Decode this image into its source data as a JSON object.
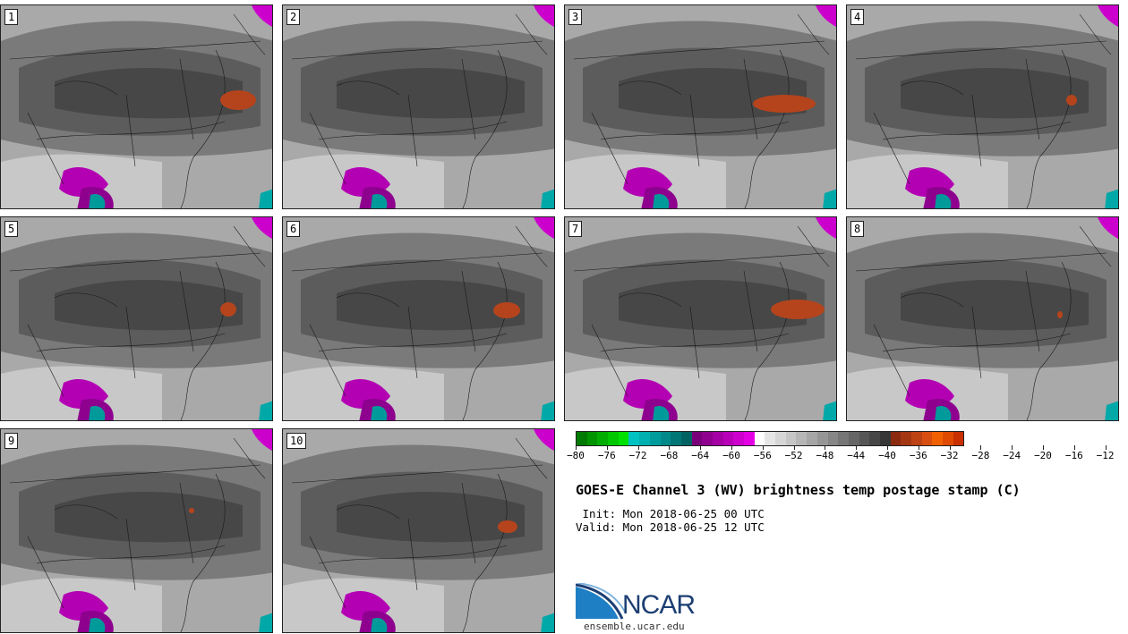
{
  "panels": [
    {
      "label": "1",
      "hot": [
        [
          245,
          95,
          40,
          22
        ]
      ]
    },
    {
      "label": "2",
      "hot": []
    },
    {
      "label": "3",
      "hot": [
        [
          210,
          100,
          70,
          20
        ]
      ]
    },
    {
      "label": "4",
      "hot": [
        [
          245,
          100,
          12,
          12
        ]
      ]
    },
    {
      "label": "5",
      "hot": [
        [
          245,
          95,
          18,
          16
        ]
      ]
    },
    {
      "label": "6",
      "hot": [
        [
          235,
          95,
          30,
          18
        ]
      ]
    },
    {
      "label": "7",
      "hot": [
        [
          230,
          92,
          60,
          22
        ]
      ]
    },
    {
      "label": "8",
      "hot": [
        [
          235,
          105,
          6,
          8
        ]
      ]
    },
    {
      "label": "9",
      "hot": [
        [
          210,
          88,
          6,
          6
        ]
      ]
    },
    {
      "label": "10",
      "hot": [
        [
          240,
          102,
          22,
          14
        ]
      ]
    }
  ],
  "colorbar": {
    "colors": [
      "#007a00",
      "#009400",
      "#00ad00",
      "#00c700",
      "#00e000",
      "#00c2c2",
      "#00afaf",
      "#009c9c",
      "#008989",
      "#007676",
      "#006363",
      "#7a007a",
      "#8f008f",
      "#a400a4",
      "#b900b9",
      "#ce00ce",
      "#e300e3",
      "#ffffff",
      "#e6e6e6",
      "#d6d6d6",
      "#c6c6c6",
      "#b6b6b6",
      "#a6a6a6",
      "#969696",
      "#868686",
      "#767676",
      "#666666",
      "#565656",
      "#464646",
      "#363636",
      "#8b2a10",
      "#a43612",
      "#bd4214",
      "#d84e10",
      "#f06000",
      "#e04a00",
      "#c83000"
    ],
    "tick_labels": [
      "−80",
      "−76",
      "−72",
      "−68",
      "−64",
      "−60",
      "−56",
      "−52",
      "−48",
      "−44",
      "−40",
      "−36",
      "−32",
      "−28",
      "−24",
      "−20",
      "−16",
      "−12"
    ]
  },
  "title": "GOES-E Channel 3 (WV) brightness temp postage stamp (C)",
  "init_line": " Init: Mon 2018-06-25 00 UTC",
  "valid_line": "Valid: Mon 2018-06-25 12 UTC",
  "logo": {
    "word": "NCAR",
    "site": "ensemble.ucar.edu"
  }
}
